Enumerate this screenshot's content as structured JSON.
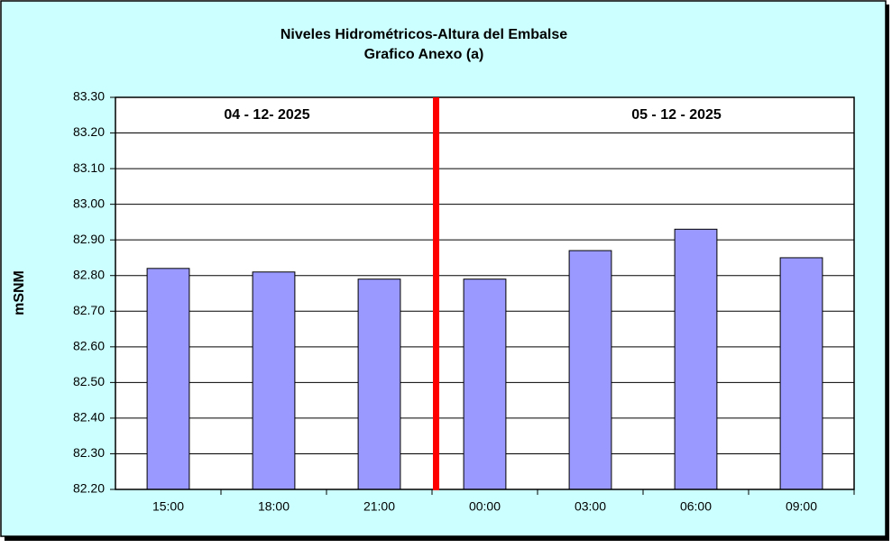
{
  "chart_data": {
    "type": "bar",
    "title": "Niveles Hidrométricos-Altura del Embalse",
    "subtitle": "Grafico Anexo (a)",
    "y_label": "mSNM",
    "annotations": [
      "04 - 12- 2025",
      "05 - 12 - 2025"
    ],
    "categories": [
      "15:00",
      "18:00",
      "21:00",
      "00:00",
      "03:00",
      "06:00",
      "09:00"
    ],
    "values": [
      82.82,
      82.81,
      82.79,
      82.79,
      82.87,
      82.93,
      82.85
    ],
    "color": "#9999ff",
    "ylim": [
      82.2,
      83.3
    ],
    "yticks": [
      {
        "value": 82.2,
        "label": "82.20"
      },
      {
        "value": 82.3,
        "label": "82.30"
      },
      {
        "value": 82.4,
        "label": "82.40"
      },
      {
        "value": 82.5,
        "label": "82.50"
      },
      {
        "value": 82.6,
        "label": "82.60"
      },
      {
        "value": 82.7,
        "label": "82.70"
      },
      {
        "value": 82.8,
        "label": "82.80"
      },
      {
        "value": 82.9,
        "label": "82.90"
      },
      {
        "value": 83.0,
        "label": "83.00"
      },
      {
        "value": 83.1,
        "label": "83.10"
      },
      {
        "value": 83.2,
        "label": "83.20"
      },
      {
        "value": 83.3,
        "label": "83.30"
      }
    ],
    "grid": true
  }
}
